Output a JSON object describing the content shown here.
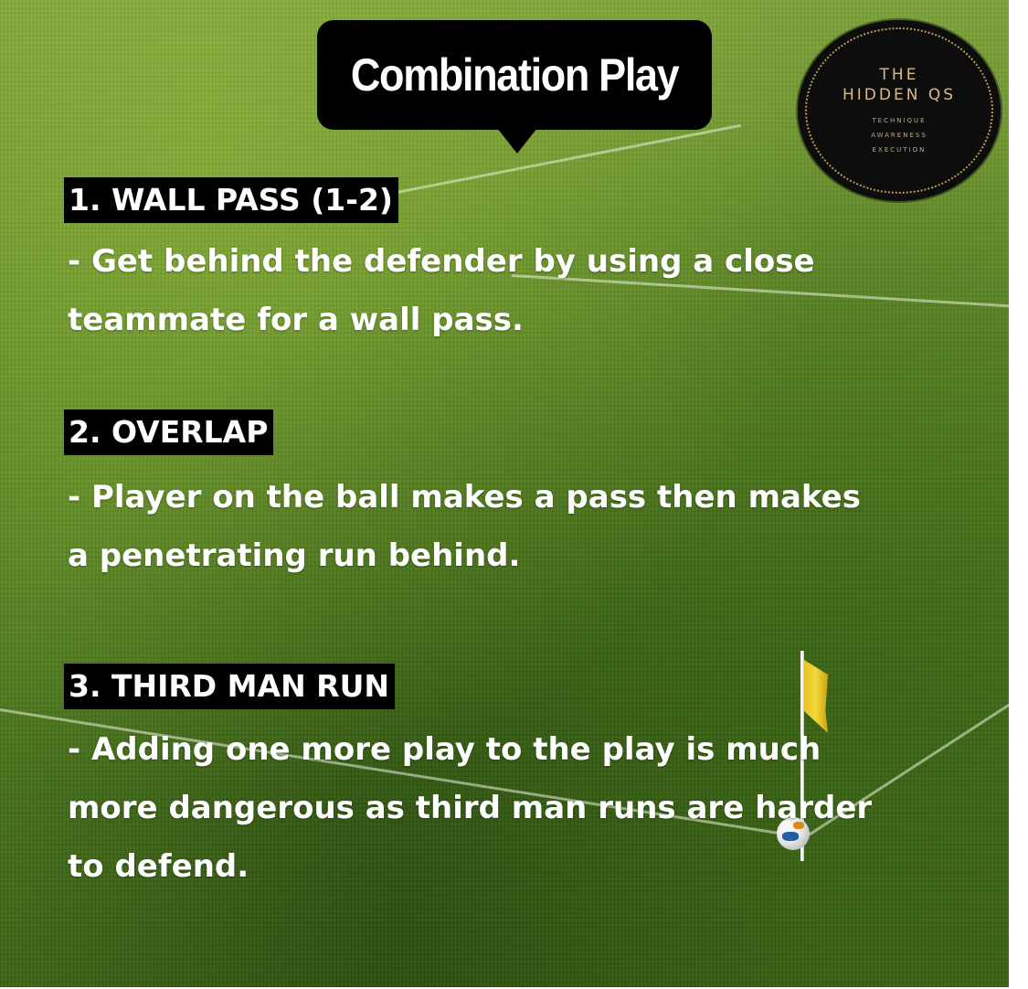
{
  "title": "Combination Play",
  "logo": {
    "line1": "THE",
    "line2": "HIDDEN QS",
    "tagline": [
      "TECHNIQUE",
      "AWARENESS",
      "EXECUTION"
    ]
  },
  "sections": [
    {
      "heading": "1. WALL PASS (1-2)",
      "lines": [
        "- Get behind the defender by using a close",
        "teammate for a wall pass."
      ]
    },
    {
      "heading": "2. OVERLAP",
      "lines": [
        "- Player on the ball makes a pass then makes",
        "a penetrating run behind."
      ]
    },
    {
      "heading": "3. THIRD MAN RUN",
      "lines": [
        "- Adding one more play to the play is much",
        "more dangerous as third man runs are harder",
        "to defend."
      ]
    }
  ],
  "colors": {
    "grass": "#5f8a26",
    "label_background": "#000000",
    "text": "#ffffff",
    "logo_gold": "#d9b98a",
    "flag": "#f3d63a"
  }
}
